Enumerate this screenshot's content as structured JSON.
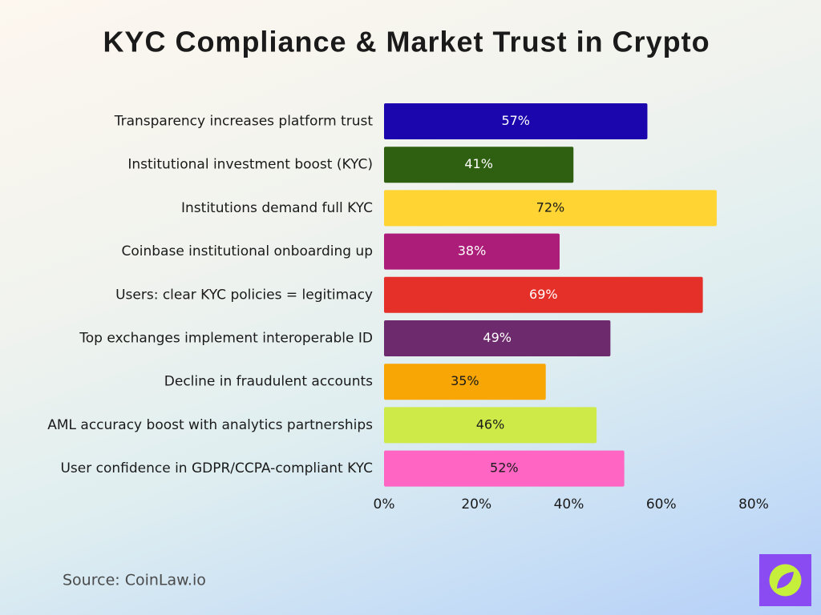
{
  "chart_data": {
    "type": "bar",
    "orientation": "horizontal",
    "title": "KYC Compliance & Market Trust in Crypto",
    "categories": [
      "Transparency increases platform trust",
      "Institutional investment boost (KYC)",
      "Institutions demand full KYC",
      "Coinbase institutional onboarding up",
      "Users: clear KYC policies = legitimacy",
      "Top exchanges implement interoperable ID",
      "Decline in fraudulent accounts",
      "AML accuracy boost with analytics partnerships",
      "User confidence in GDPR/CCPA-compliant KYC"
    ],
    "values": [
      57,
      41,
      72,
      38,
      69,
      49,
      35,
      46,
      52
    ],
    "value_labels": [
      "57%",
      "41%",
      "72%",
      "38%",
      "69%",
      "49%",
      "35%",
      "46%",
      "52%"
    ],
    "colors": [
      "#1b05ad",
      "#2f5f10",
      "#ffd433",
      "#ac1d79",
      "#e5302a",
      "#6d2a6c",
      "#f8a605",
      "#cdea48",
      "#ff66c3"
    ],
    "xlim": [
      0,
      80
    ],
    "xticks": [
      {
        "value": 0,
        "label": "0%"
      },
      {
        "value": 20,
        "label": "20%"
      },
      {
        "value": 40,
        "label": "40%"
      },
      {
        "value": 60,
        "label": "60%"
      },
      {
        "value": 80,
        "label": "80%"
      }
    ],
    "grid": false,
    "source": "Source: CoinLaw.io"
  }
}
